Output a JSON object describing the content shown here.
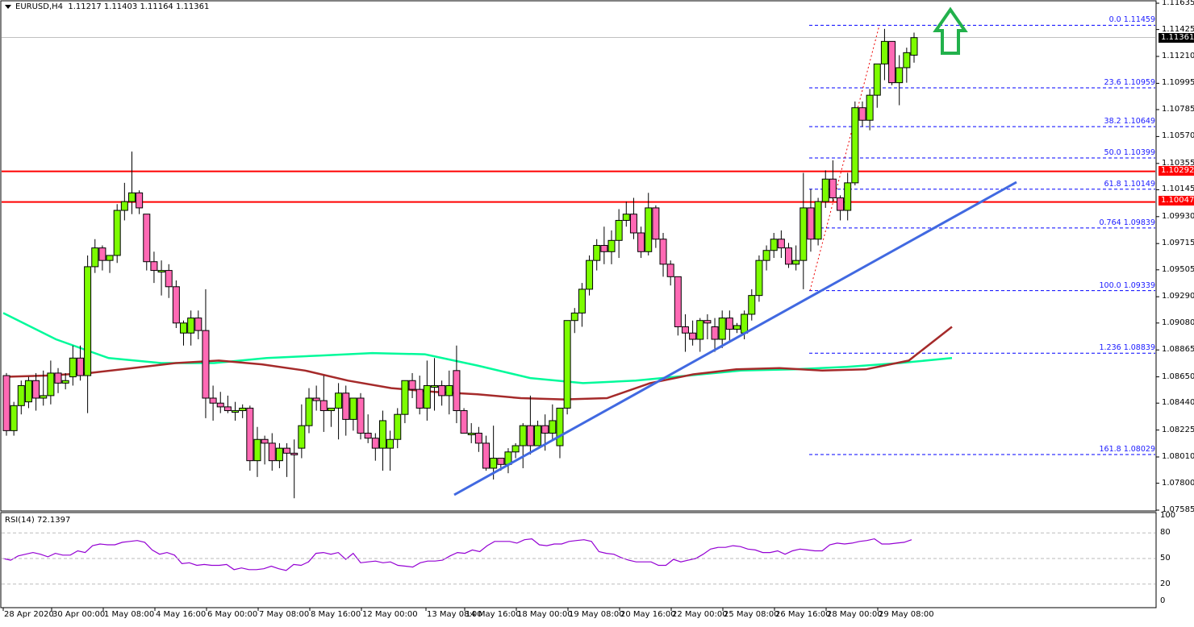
{
  "header": {
    "symbol": "EURUSD,H4",
    "ohlc": "1.11217 1.11403 1.11164 1.11361"
  },
  "rsi": {
    "label": "RSI(14) 72.1397",
    "levels": [
      "100",
      "80",
      "50",
      "20",
      "0"
    ]
  },
  "price_axis": {
    "ticks": [
      "1.11635",
      "1.11425",
      "1.11210",
      "1.10995",
      "1.10785",
      "1.10570",
      "1.10355",
      "1.10145",
      "1.09930",
      "1.09715",
      "1.09505",
      "1.09290",
      "1.09080",
      "1.08865",
      "1.08650",
      "1.08440",
      "1.08225",
      "1.08010",
      "1.07800",
      "1.07585"
    ],
    "current_price": "1.11361",
    "resistance_1": "1.10292",
    "resistance_2": "1.10047"
  },
  "time_axis": {
    "labels": [
      "28 Apr 2020",
      "30 Apr 00:00",
      "1 May 08:00",
      "4 May 16:00",
      "6 May 00:00",
      "7 May 08:00",
      "8 May 16:00",
      "12 May 00:00",
      "13 May 08:00",
      "14 May 16:00",
      "18 May 00:00",
      "19 May 08:00",
      "20 May 16:00",
      "22 May 00:00",
      "25 May 08:00",
      "26 May 16:00",
      "28 May 00:00",
      "29 May 08:00"
    ]
  },
  "fibonacci": [
    {
      "label": "0.0 1.11459"
    },
    {
      "label": "23.6 1.10959"
    },
    {
      "label": "38.2 1.10649"
    },
    {
      "label": "50.0 1.10399"
    },
    {
      "label": "61.8 1.10149"
    },
    {
      "label": "0.764 1.09839"
    },
    {
      "label": "100.0 1.09339"
    },
    {
      "label": "1.236 1.08839"
    },
    {
      "label": "161.8 1.08029"
    }
  ],
  "colors": {
    "bull": "#7CFC00",
    "bear": "#FF69B4",
    "resistance": "#FF0000",
    "trendline": "#4169E1",
    "ma_fast": "#A52A2A",
    "ma_slow": "#00FA9A",
    "fib": "#0000FF",
    "rsi": "#9400D3",
    "arrow": "#22B14C"
  },
  "chart_data": {
    "type": "candlestick",
    "title": "EURUSD,H4",
    "subtitle": "O 1.11217 H 1.11403 L 1.11164 C 1.11361",
    "xlabel": "",
    "ylabel": "",
    "ylim": [
      1.07585,
      1.11635
    ],
    "grid": false,
    "x_labels": [
      "28 Apr 2020",
      "30 Apr 00:00",
      "1 May 08:00",
      "4 May 16:00",
      "6 May 00:00",
      "7 May 08:00",
      "8 May 16:00",
      "12 May 00:00",
      "13 May 08:00",
      "14 May 16:00",
      "18 May 00:00",
      "19 May 08:00",
      "20 May 16:00",
      "22 May 00:00",
      "25 May 08:00",
      "26 May 16:00",
      "28 May 00:00",
      "29 May 08:00"
    ],
    "candles": [
      [
        1.0866,
        1.0868,
        1.0818,
        1.0822
      ],
      [
        1.0822,
        1.0845,
        1.0818,
        1.0842
      ],
      [
        1.0842,
        1.0862,
        1.0835,
        1.0858
      ],
      [
        1.0845,
        1.0865,
        1.084,
        1.0862
      ],
      [
        1.0862,
        1.0868,
        1.0838,
        1.0848
      ],
      [
        1.0848,
        1.087,
        1.0842,
        1.085
      ],
      [
        1.085,
        1.0878,
        1.0843,
        1.0868
      ],
      [
        1.0868,
        1.0872,
        1.0852,
        1.086
      ],
      [
        1.086,
        1.0868,
        1.0855,
        1.0862
      ],
      [
        1.0865,
        1.089,
        1.0858,
        1.088
      ],
      [
        1.088,
        1.089,
        1.0862,
        1.0866
      ],
      [
        1.0866,
        1.0962,
        1.0836,
        1.0953
      ],
      [
        1.0953,
        1.0975,
        1.0948,
        1.0968
      ],
      [
        1.0968,
        1.097,
        1.095,
        1.0958
      ],
      [
        1.0958,
        1.0962,
        1.0948,
        1.0962
      ],
      [
        1.0962,
        1.1003,
        1.0956,
        1.0998
      ],
      [
        1.0998,
        1.102,
        1.099,
        1.1005
      ],
      [
        1.1005,
        1.1045,
        1.0995,
        1.1012
      ],
      [
        1.1012,
        1.1014,
        1.0995,
        1.1
      ],
      [
        1.0995,
        1.098,
        1.095,
        1.0957
      ],
      [
        1.0957,
        1.0965,
        1.094,
        1.095
      ],
      [
        1.095,
        1.0958,
        1.093,
        1.095
      ],
      [
        1.095,
        1.0955,
        1.0928,
        1.0937
      ],
      [
        1.0937,
        1.0942,
        1.0904,
        1.0908
      ],
      [
        1.09,
        1.091,
        1.089,
        1.0908
      ],
      [
        1.09,
        1.0918,
        1.089,
        1.0912
      ],
      [
        1.0912,
        1.0918,
        1.0895,
        1.0902
      ],
      [
        1.0902,
        1.0935,
        1.0832,
        1.0848
      ],
      [
        1.0848,
        1.0858,
        1.083,
        1.0844
      ],
      [
        1.0844,
        1.0853,
        1.0836,
        1.0841
      ],
      [
        1.0841,
        1.085,
        1.0836,
        1.0838
      ],
      [
        1.0838,
        1.0845,
        1.083,
        1.0838
      ],
      [
        1.0838,
        1.0843,
        1.0832,
        1.084
      ],
      [
        1.084,
        1.0842,
        1.079,
        1.0798
      ],
      [
        1.0798,
        1.0825,
        1.0785,
        1.0815
      ],
      [
        1.0815,
        1.0818,
        1.0795,
        1.0812
      ],
      [
        1.0812,
        1.082,
        1.079,
        1.0798
      ],
      [
        1.0798,
        1.0812,
        1.0792,
        1.0808
      ],
      [
        1.0808,
        1.0812,
        1.0785,
        1.0804
      ],
      [
        1.0804,
        1.0815,
        1.0768,
        1.0803
      ],
      [
        1.0808,
        1.0843,
        1.08,
        1.0826
      ],
      [
        1.0826,
        1.0856,
        1.082,
        1.0848
      ],
      [
        1.0848,
        1.0858,
        1.0838,
        1.0846
      ],
      [
        1.0846,
        1.0866,
        1.0821,
        1.0838
      ],
      [
        1.0838,
        1.084,
        1.0825,
        1.084
      ],
      [
        1.084,
        1.086,
        1.0815,
        1.0852
      ],
      [
        1.0852,
        1.0858,
        1.0818,
        1.0831
      ],
      [
        1.0831,
        1.0848,
        1.0822,
        1.0848
      ],
      [
        1.0848,
        1.0852,
        1.0815,
        1.082
      ],
      [
        1.082,
        1.0835,
        1.0812,
        1.0816
      ],
      [
        1.0816,
        1.082,
        1.0798,
        1.0808
      ],
      [
        1.0808,
        1.0838,
        1.079,
        1.083
      ],
      [
        1.0808,
        1.0822,
        1.079,
        1.0815
      ],
      [
        1.0815,
        1.084,
        1.0808,
        1.0835
      ],
      [
        1.0835,
        1.0862,
        1.0828,
        1.0862
      ],
      [
        1.0862,
        1.0868,
        1.0848,
        1.0855
      ],
      [
        1.0855,
        1.0866,
        1.0835,
        1.084
      ],
      [
        1.084,
        1.0878,
        1.083,
        1.0858
      ],
      [
        1.0858,
        1.088,
        1.0838,
        1.0858
      ],
      [
        1.0858,
        1.0862,
        1.0842,
        1.085
      ],
      [
        1.085,
        1.087,
        1.0835,
        1.0858
      ],
      [
        1.087,
        1.089,
        1.0828,
        1.0838
      ],
      [
        1.0838,
        1.084,
        1.082,
        1.082
      ],
      [
        1.082,
        1.0828,
        1.0812,
        1.082
      ],
      [
        1.082,
        1.0825,
        1.0805,
        1.0812
      ],
      [
        1.0812,
        1.0818,
        1.079,
        1.0792
      ],
      [
        1.0792,
        1.0826,
        1.0783,
        1.08
      ],
      [
        1.08,
        1.0798,
        1.079,
        1.0795
      ],
      [
        1.0795,
        1.0808,
        1.0788,
        1.0805
      ],
      [
        1.0805,
        1.0812,
        1.08,
        1.081
      ],
      [
        1.081,
        1.0828,
        1.0792,
        1.0826
      ],
      [
        1.0826,
        1.085,
        1.0803,
        1.081
      ],
      [
        1.081,
        1.083,
        1.0812,
        1.0826
      ],
      [
        1.0826,
        1.0835,
        1.0806,
        1.082
      ],
      [
        1.082,
        1.0843,
        1.0815,
        1.083
      ],
      [
        1.081,
        1.084,
        1.08,
        1.084
      ],
      [
        1.084,
        1.091,
        1.0835,
        1.091
      ],
      [
        1.091,
        1.092,
        1.09,
        1.0916
      ]
    ],
    "series": [
      {
        "name": "MA (fast, brown)",
        "values": [
          1.0865,
          1.0866,
          1.0868,
          1.0872,
          1.0876,
          1.0878,
          1.0875,
          1.087,
          1.0862,
          1.0856,
          1.0853,
          1.0851,
          1.0848,
          1.0847,
          1.0848,
          1.086,
          1.0867,
          1.0871,
          1.0872,
          1.087,
          1.0871,
          1.0878,
          1.0905
        ]
      },
      {
        "name": "MA (slow, green)",
        "values": [
          1.0916,
          1.0895,
          1.088,
          1.0876,
          1.0876,
          1.088,
          1.0882,
          1.0884,
          1.0883,
          1.0874,
          1.0864,
          1.086,
          1.0862,
          1.0866,
          1.087,
          1.0871,
          1.0873,
          1.0876,
          1.088
        ]
      },
      {
        "name": "RSI(14)",
        "values": [
          50,
          48,
          53,
          55,
          57,
          55,
          52,
          56,
          54,
          54,
          59,
          57,
          65,
          67,
          66,
          66,
          69,
          70,
          71,
          69,
          60,
          55,
          57,
          54,
          44,
          45,
          42,
          43,
          42,
          42,
          43,
          37,
          39,
          37,
          37,
          38,
          41,
          38,
          36,
          43,
          42,
          46,
          56,
          57,
          55,
          57,
          49,
          56,
          45,
          46,
          47,
          45,
          46,
          42,
          41,
          40,
          45,
          47,
          47,
          48,
          53,
          57,
          56,
          60,
          58,
          65,
          70,
          70,
          70,
          68,
          72,
          73,
          66,
          65,
          67,
          67,
          70,
          71,
          72,
          70,
          58,
          56,
          55,
          51,
          48,
          46,
          46,
          46,
          42,
          42,
          49,
          46,
          48,
          50,
          55,
          61,
          63,
          63,
          65,
          64,
          61,
          60,
          57,
          57,
          59,
          55,
          59,
          61,
          60,
          59,
          59,
          66,
          68,
          67,
          68,
          70,
          71,
          73,
          67,
          67,
          68,
          69,
          72
        ]
      }
    ],
    "horizontal_lines": [
      {
        "name": "Resistance 1",
        "value": 1.10292,
        "color": "#FF0000"
      },
      {
        "name": "Resistance 2",
        "value": 1.10047,
        "color": "#FF0000"
      },
      {
        "name": "Current price",
        "value": 1.11361
      }
    ],
    "fibonacci_levels": [
      {
        "level": "0.0",
        "value": 1.11459
      },
      {
        "level": "23.6",
        "value": 1.10959
      },
      {
        "level": "38.2",
        "value": 1.10649
      },
      {
        "level": "50.0",
        "value": 1.10399
      },
      {
        "level": "61.8",
        "value": 1.10149
      },
      {
        "level": "0.764",
        "value": 1.09839
      },
      {
        "level": "100.0",
        "value": 1.09339
      },
      {
        "level": "1.236",
        "value": 1.08839
      },
      {
        "level": "161.8",
        "value": 1.08029
      }
    ],
    "trendline": {
      "from": {
        "x_label": "14 May 08:00",
        "price": 1.077
      },
      "to": {
        "x_label": "29 May 08:00",
        "price": 1.1017
      }
    },
    "annotations": [
      "Green up arrow near 29 May 08:00 above 1.11459"
    ],
    "indicator": {
      "name": "RSI(14)",
      "value": 72.1397,
      "levels": [
        20,
        50,
        80
      ],
      "ylim": [
        0,
        100
      ]
    }
  }
}
